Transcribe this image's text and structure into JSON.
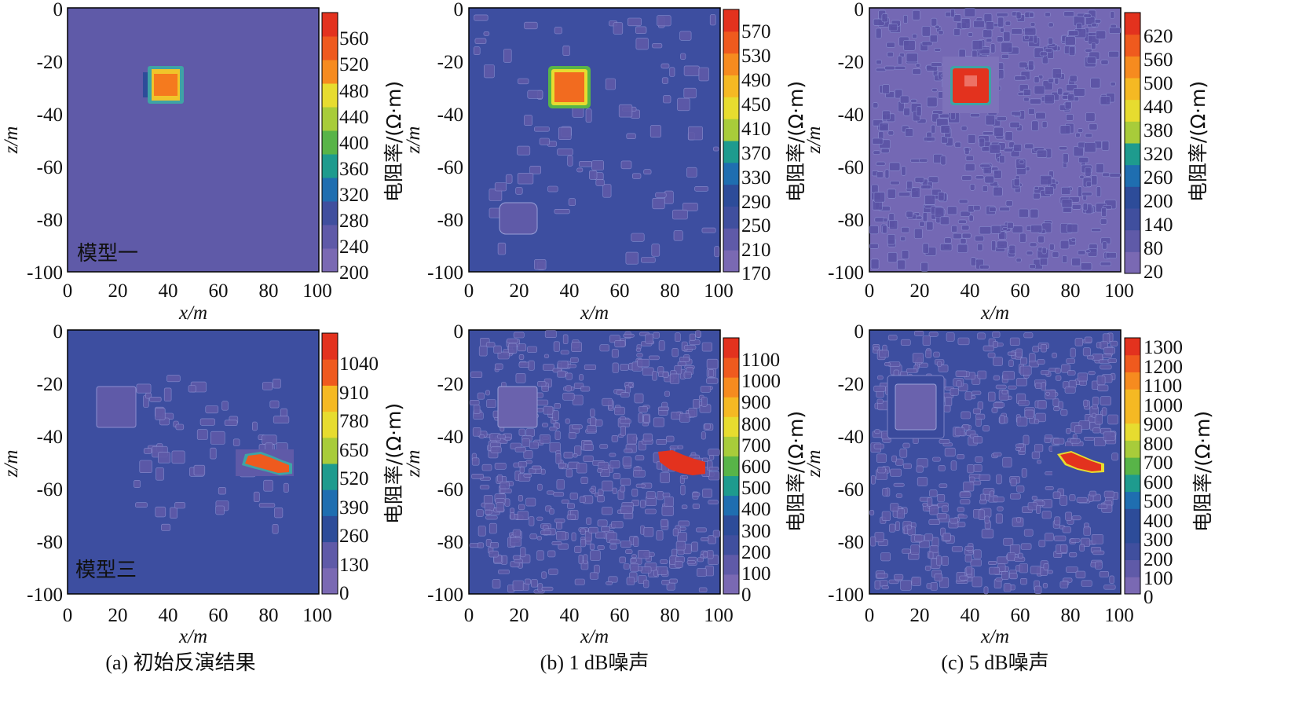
{
  "chart_data": [
    {
      "type": "heatmap",
      "id": "a-top",
      "model_label": "模型一",
      "bg": "#5f5aa8",
      "speckle": "none",
      "xlabel": "x/m",
      "ylabel": "z/m",
      "xticks": [
        "0",
        "20",
        "40",
        "60",
        "80",
        "100"
      ],
      "yticks": [
        "0",
        "-20",
        "-40",
        "-60",
        "-80",
        "-100"
      ],
      "xlim": [
        0,
        100
      ],
      "ylim": [
        -100,
        0
      ],
      "colorbar": {
        "label": "电阻率/(Ω·m)",
        "ticks": [
          "560",
          "520",
          "480",
          "440",
          "400",
          "360",
          "320",
          "280",
          "240",
          "200"
        ],
        "range": [
          200,
          600
        ]
      },
      "anomalies": [
        {
          "kind": "hot-square",
          "x": [
            33,
            47
          ],
          "z": [
            -23,
            -37
          ]
        }
      ]
    },
    {
      "type": "heatmap",
      "id": "b-top",
      "bg": "#3d4ea0",
      "speckle": "patchy",
      "xlabel": "x/m",
      "ylabel": "z/m",
      "xticks": [
        "0",
        "20",
        "40",
        "60",
        "80",
        "100"
      ],
      "yticks": [
        "0",
        "-20",
        "-40",
        "-60",
        "-80",
        "-100"
      ],
      "xlim": [
        0,
        100
      ],
      "ylim": [
        -100,
        0
      ],
      "colorbar": {
        "label": "电阻率/(Ω·m)",
        "ticks": [
          "570",
          "530",
          "490",
          "450",
          "410",
          "370",
          "330",
          "290",
          "250",
          "210",
          "170"
        ],
        "range": [
          150,
          610
        ]
      },
      "anomalies": [
        {
          "kind": "hot-square",
          "x": [
            33,
            47
          ],
          "z": [
            -23,
            -38
          ]
        }
      ]
    },
    {
      "type": "heatmap",
      "id": "c-top",
      "bg": "#7468b4",
      "speckle": "dense",
      "xlabel": "x/m",
      "ylabel": "z/m",
      "xticks": [
        "0",
        "20",
        "40",
        "60",
        "80",
        "100"
      ],
      "yticks": [
        "0",
        "-20",
        "-40",
        "-60",
        "-80",
        "-100"
      ],
      "xlim": [
        0,
        100
      ],
      "ylim": [
        -100,
        0
      ],
      "colorbar": {
        "label": "电阻率/(Ω·m)",
        "ticks": [
          "620",
          "560",
          "500",
          "440",
          "380",
          "320",
          "260",
          "200",
          "140",
          "80",
          "20"
        ],
        "range": [
          0,
          680
        ]
      },
      "anomalies": [
        {
          "kind": "hot-square",
          "x": [
            32,
            46
          ],
          "z": [
            -22,
            -37
          ]
        }
      ]
    },
    {
      "type": "heatmap",
      "id": "a-bottom",
      "model_label": "模型三",
      "bg": "#3d4ea0",
      "speckle": "sparse",
      "xlabel": "x/m",
      "ylabel": "z/m",
      "xticks": [
        "0",
        "20",
        "40",
        "60",
        "80",
        "100"
      ],
      "yticks": [
        "0",
        "-20",
        "-40",
        "-60",
        "-80",
        "-100"
      ],
      "xlim": [
        0,
        100
      ],
      "ylim": [
        -100,
        0
      ],
      "colorbar": {
        "label": "电阻率/(Ω·m)",
        "ticks": [
          "1040",
          "910",
          "780",
          "650",
          "520",
          "390",
          "260",
          "130",
          "0"
        ],
        "range": [
          -65,
          1105
        ]
      },
      "anomalies": [
        {
          "kind": "pale-square",
          "x": [
            12,
            27
          ],
          "z": [
            -22,
            -37
          ]
        },
        {
          "kind": "hot-streak",
          "x": [
            72,
            90
          ],
          "z": [
            -47,
            -56
          ]
        }
      ],
      "caption": "(a) 初始反演结果"
    },
    {
      "type": "heatmap",
      "id": "b-bottom",
      "bg": "#3d4ea0",
      "speckle": "dense",
      "xlabel": "x/m",
      "ylabel": "z/m",
      "xticks": [
        "0",
        "20",
        "40",
        "60",
        "80",
        "100"
      ],
      "yticks": [
        "0",
        "-20",
        "-40",
        "-60",
        "-80",
        "-100"
      ],
      "xlim": [
        0,
        100
      ],
      "ylim": [
        -100,
        0
      ],
      "colorbar": {
        "label": "电阻率/(Ω·m)",
        "ticks": [
          "1100",
          "1000",
          "900",
          "800",
          "700",
          "600",
          "500",
          "400",
          "300",
          "200",
          "100",
          "0"
        ],
        "range": [
          -50,
          1150
        ]
      },
      "anomalies": [
        {
          "kind": "pale-square",
          "x": [
            12,
            27
          ],
          "z": [
            -22,
            -37
          ]
        },
        {
          "kind": "hot-streak",
          "x": [
            76,
            93
          ],
          "z": [
            -46,
            -55
          ]
        }
      ],
      "caption": "(b) 1 dB噪声"
    },
    {
      "type": "heatmap",
      "id": "c-bottom",
      "bg": "#3d4ea0",
      "speckle": "dense",
      "xlabel": "x/m",
      "ylabel": "z/m",
      "xticks": [
        "0",
        "20",
        "40",
        "60",
        "80",
        "100"
      ],
      "yticks": [
        "0",
        "-20",
        "-40",
        "-60",
        "-80",
        "-100"
      ],
      "xlim": [
        0,
        100
      ],
      "ylim": [
        -100,
        0
      ],
      "colorbar": {
        "label": "电阻率/(Ω·m)",
        "ticks": [
          "1300",
          "1200",
          "1100",
          "1000",
          "900",
          "800",
          "700",
          "600",
          "500",
          "400",
          "300",
          "200",
          "100",
          "0"
        ],
        "range": [
          -50,
          1350
        ]
      },
      "anomalies": [
        {
          "kind": "pale-square",
          "x": [
            8,
            30
          ],
          "z": [
            -17,
            -42
          ]
        },
        {
          "kind": "hot-streak",
          "x": [
            76,
            94
          ],
          "z": [
            -46,
            -55
          ]
        }
      ],
      "caption": "(c) 5 dB噪声"
    }
  ],
  "colormap": [
    "#7a69b3",
    "#5f5aa8",
    "#404f9e",
    "#2d4c99",
    "#1f6eb0",
    "#1e9b8e",
    "#58b448",
    "#a8cc3a",
    "#e7dc2f",
    "#f5b923",
    "#f68b1f",
    "#ef5a1e",
    "#e3321e"
  ]
}
